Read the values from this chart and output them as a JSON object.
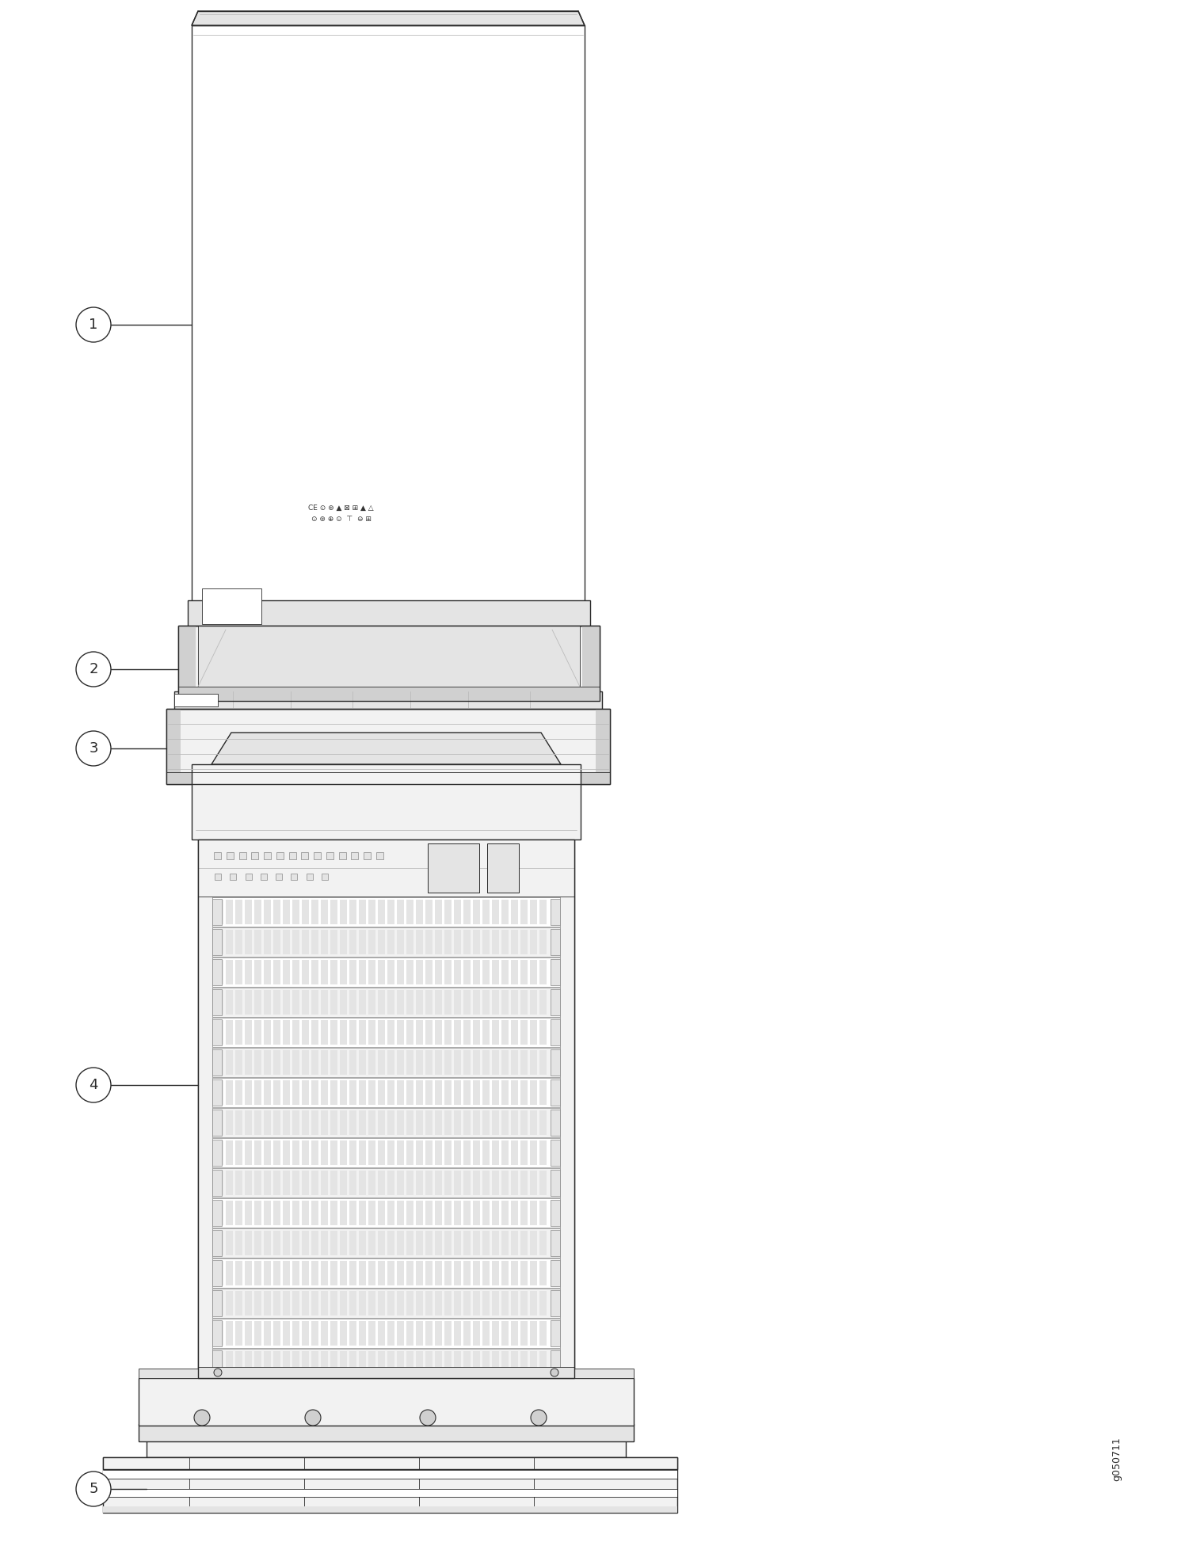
{
  "bg_color": "#ffffff",
  "lc": "#2a2a2a",
  "lg": "#bbbbbb",
  "mg": "#888888",
  "fill_white": "#ffffff",
  "fill_light": "#f2f2f2",
  "fill_mid": "#e4e4e4",
  "fill_dark": "#d0d0d0",
  "watermark": "g050711",
  "fig_w": 15.01,
  "fig_h": 19.47,
  "dpi": 100
}
